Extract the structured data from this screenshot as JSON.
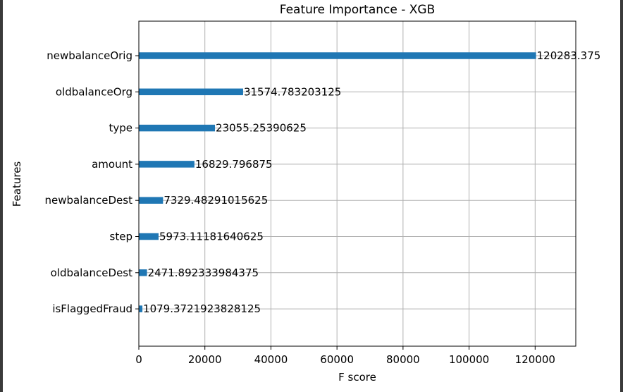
{
  "chart_data": {
    "type": "bar",
    "orientation": "horizontal",
    "title": "Feature Importance - XGB",
    "xlabel": "F score",
    "ylabel": "Features",
    "xlim": [
      0,
      132311.7125
    ],
    "xticks": [
      0,
      20000,
      40000,
      60000,
      80000,
      100000,
      120000
    ],
    "grid": true,
    "categories": [
      "newbalanceOrig",
      "oldbalanceOrg",
      "type",
      "amount",
      "newbalanceDest",
      "step",
      "oldbalanceDest",
      "isFlaggedFraud"
    ],
    "values": [
      120283.375,
      31574.783203125,
      23055.25390625,
      16829.796875,
      7329.48291015625,
      5973.11181640625,
      2471.892333984375,
      1079.3721923828125
    ],
    "value_labels": [
      "120283.375",
      "31574.783203125",
      "23055.25390625",
      "16829.796875",
      "7329.48291015625",
      "5973.11181640625",
      "2471.892333984375",
      "1079.3721923828125"
    ],
    "colors": {
      "bar": "#1f77b4",
      "grid": "#b0b0b0",
      "axis": "#000000"
    }
  }
}
